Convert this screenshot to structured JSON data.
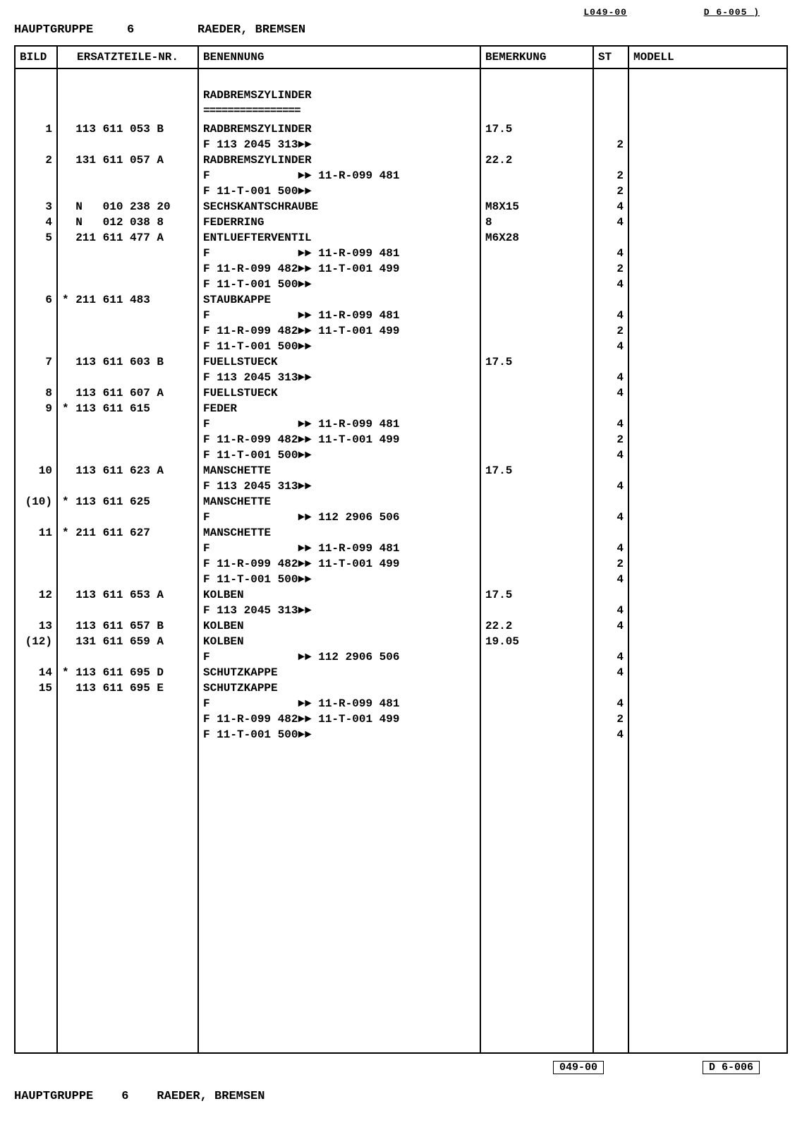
{
  "top_marker_left": "L049-00",
  "top_marker_right": "D  6-005 )",
  "header": {
    "hg_label": "HAUPTGRUPPE",
    "hg_number": "6",
    "hg_title": "RAEDER, BREMSEN"
  },
  "columns": {
    "bild": "BILD",
    "part": "ERSATZTEILE-NR.",
    "name": "BENENNUNG",
    "bem": "BEMERKUNG",
    "st": "ST",
    "model": "MODELL"
  },
  "section_title": "RADBREMSZYLINDER",
  "section_underline": "================",
  "rows": [
    {
      "bild": "1",
      "part": "  113 611 053 B",
      "name": "RADBREMSZYLINDER",
      "bem": "17.5",
      "st": ""
    },
    {
      "bild": "",
      "part": "",
      "name": "F 113 2045 313►►",
      "bem": "",
      "st": "2"
    },
    {
      "bild": "2",
      "part": "  131 611 057 A",
      "name": "RADBREMSZYLINDER",
      "bem": "22.2",
      "st": ""
    },
    {
      "bild": "",
      "part": "",
      "name": "F             ►► 11-R-099 481",
      "bem": "",
      "st": "2"
    },
    {
      "bild": "",
      "part": "",
      "name": "F 11-T-001 500►►",
      "bem": "",
      "st": "2"
    },
    {
      "bild": "3",
      "part": "  N   010 238 20",
      "name": "SECHSKANTSCHRAUBE",
      "bem": "M8X15",
      "st": "4"
    },
    {
      "bild": "4",
      "part": "  N   012 038 8",
      "name": "FEDERRING",
      "bem": "8",
      "st": "4"
    },
    {
      "bild": "5",
      "part": "  211 611 477 A",
      "name": "ENTLUEFTERVENTIL",
      "bem": "M6X28",
      "st": ""
    },
    {
      "bild": "",
      "part": "",
      "name": "F             ►► 11-R-099 481",
      "bem": "",
      "st": "4"
    },
    {
      "bild": "",
      "part": "",
      "name": "F 11-R-099 482►► 11-T-001 499",
      "bem": "",
      "st": "2"
    },
    {
      "bild": "",
      "part": "",
      "name": "F 11-T-001 500►►",
      "bem": "",
      "st": "4"
    },
    {
      "bild": "6",
      "part": "* 211 611 483",
      "name": "STAUBKAPPE",
      "bem": "",
      "st": ""
    },
    {
      "bild": "",
      "part": "",
      "name": "F             ►► 11-R-099 481",
      "bem": "",
      "st": "4"
    },
    {
      "bild": "",
      "part": "",
      "name": "F 11-R-099 482►► 11-T-001 499",
      "bem": "",
      "st": "2"
    },
    {
      "bild": "",
      "part": "",
      "name": "F 11-T-001 500►►",
      "bem": "",
      "st": "4"
    },
    {
      "bild": "7",
      "part": "  113 611 603 B",
      "name": "FUELLSTUECK",
      "bem": "17.5",
      "st": ""
    },
    {
      "bild": "",
      "part": "",
      "name": "F 113 2045 313►►",
      "bem": "",
      "st": "4"
    },
    {
      "bild": "8",
      "part": "  113 611 607 A",
      "name": "FUELLSTUECK",
      "bem": "",
      "st": "4"
    },
    {
      "bild": "9",
      "part": "* 113 611 615",
      "name": "FEDER",
      "bem": "",
      "st": ""
    },
    {
      "bild": "",
      "part": "",
      "name": "F             ►► 11-R-099 481",
      "bem": "",
      "st": "4"
    },
    {
      "bild": "",
      "part": "",
      "name": "F 11-R-099 482►► 11-T-001 499",
      "bem": "",
      "st": "2"
    },
    {
      "bild": "",
      "part": "",
      "name": "F 11-T-001 500►►",
      "bem": "",
      "st": "4"
    },
    {
      "bild": "10",
      "part": "  113 611 623 A",
      "name": "MANSCHETTE",
      "bem": "17.5",
      "st": ""
    },
    {
      "bild": "",
      "part": "",
      "name": "F 113 2045 313►►",
      "bem": "",
      "st": "4"
    },
    {
      "bild": "(10)",
      "part": "* 113 611 625",
      "name": "MANSCHETTE",
      "bem": "",
      "st": ""
    },
    {
      "bild": "",
      "part": "",
      "name": "F             ►► 112 2906 506",
      "bem": "",
      "st": "4"
    },
    {
      "bild": "11",
      "part": "* 211 611 627",
      "name": "MANSCHETTE",
      "bem": "",
      "st": ""
    },
    {
      "bild": "",
      "part": "",
      "name": "F             ►► 11-R-099 481",
      "bem": "",
      "st": "4"
    },
    {
      "bild": "",
      "part": "",
      "name": "F 11-R-099 482►► 11-T-001 499",
      "bem": "",
      "st": "2"
    },
    {
      "bild": "",
      "part": "",
      "name": "F 11-T-001 500►►",
      "bem": "",
      "st": "4"
    },
    {
      "bild": "12",
      "part": "  113 611 653 A",
      "name": "KOLBEN",
      "bem": "17.5",
      "st": ""
    },
    {
      "bild": "",
      "part": "",
      "name": "F 113 2045 313►►",
      "bem": "",
      "st": "4"
    },
    {
      "bild": "13",
      "part": "  113 611 657 B",
      "name": "KOLBEN",
      "bem": "22.2",
      "st": "4"
    },
    {
      "bild": "(12)",
      "part": "  131 611 659 A",
      "name": "KOLBEN",
      "bem": "19.05",
      "st": ""
    },
    {
      "bild": "",
      "part": "",
      "name": "F             ►► 112 2906 506",
      "bem": "",
      "st": "4"
    },
    {
      "bild": "14",
      "part": "* 113 611 695 D",
      "name": "SCHUTZKAPPE",
      "bem": "",
      "st": "4"
    },
    {
      "bild": "15",
      "part": "  113 611 695 E",
      "name": "SCHUTZKAPPE",
      "bem": "",
      "st": ""
    },
    {
      "bild": "",
      "part": "",
      "name": "F             ►► 11-R-099 481",
      "bem": "",
      "st": "4"
    },
    {
      "bild": "",
      "part": "",
      "name": "F 11-R-099 482►► 11-T-001 499",
      "bem": "",
      "st": "2"
    },
    {
      "bild": "",
      "part": "",
      "name": "F 11-T-001 500►►",
      "bem": "",
      "st": "4"
    }
  ],
  "footer_code_left": "049-00",
  "footer_code_right": "D  6-006",
  "footer": {
    "hg_label": "HAUPTGRUPPE",
    "hg_number": "6",
    "hg_title": "RAEDER, BREMSEN"
  }
}
